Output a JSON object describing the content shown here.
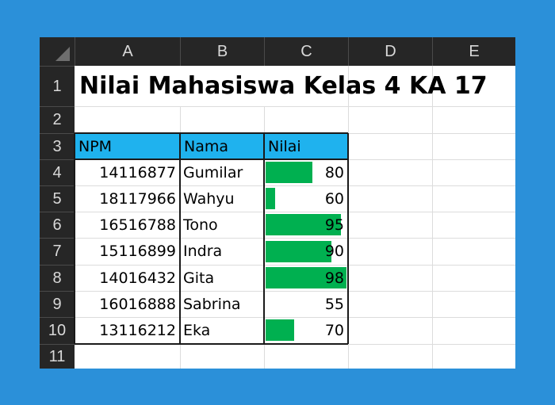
{
  "spreadsheet": {
    "columns": [
      "A",
      "B",
      "C",
      "D",
      "E"
    ],
    "rows": [
      "1",
      "2",
      "3",
      "4",
      "5",
      "6",
      "7",
      "8",
      "9",
      "10",
      "11"
    ],
    "title": "Nilai Mahasiswa Kelas 4 KA 17",
    "headers": {
      "npm": "NPM",
      "nama": "Nama",
      "nilai": "Nilai"
    },
    "data_bar_color": "#00b050",
    "header_fill_color": "#1fb2ee",
    "data_bar_range": [
      55,
      98
    ],
    "records": [
      {
        "npm": "14116877",
        "nama": "Gumilar",
        "nilai": "80"
      },
      {
        "npm": "18117966",
        "nama": "Wahyu",
        "nilai": "60"
      },
      {
        "npm": "16516788",
        "nama": "Tono",
        "nilai": "95"
      },
      {
        "npm": "15116899",
        "nama": "Indra",
        "nilai": "90"
      },
      {
        "npm": "14016432",
        "nama": "Gita",
        "nilai": "98"
      },
      {
        "npm": "16016888",
        "nama": "Sabrina",
        "nilai": "55"
      },
      {
        "npm": "13116212",
        "nama": "Eka",
        "nilai": "70"
      }
    ]
  }
}
